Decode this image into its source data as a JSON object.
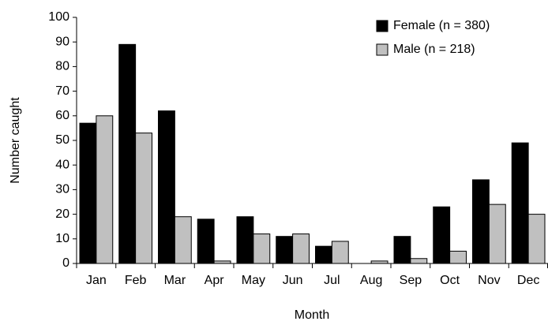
{
  "chart_data": {
    "type": "bar",
    "x_label": "Month",
    "y_label": "Number caught",
    "categories": [
      "Jan",
      "Feb",
      "Mar",
      "Apr",
      "May",
      "Jun",
      "Jul",
      "Aug",
      "Sep",
      "Oct",
      "Nov",
      "Dec"
    ],
    "series": [
      {
        "name": "Female (n = 380)",
        "color": "#000000",
        "values": [
          57,
          89,
          62,
          18,
          19,
          11,
          7,
          0,
          11,
          23,
          34,
          49
        ]
      },
      {
        "name": "Male (n = 218)",
        "color": "#c0c0c0",
        "values": [
          60,
          53,
          19,
          1,
          12,
          12,
          9,
          1,
          2,
          5,
          24,
          20
        ]
      }
    ],
    "ylim": [
      0,
      100
    ],
    "yticks": [
      0,
      10,
      20,
      30,
      40,
      50,
      60,
      70,
      80,
      90,
      100
    ],
    "grid": false,
    "legend": "upper right"
  }
}
